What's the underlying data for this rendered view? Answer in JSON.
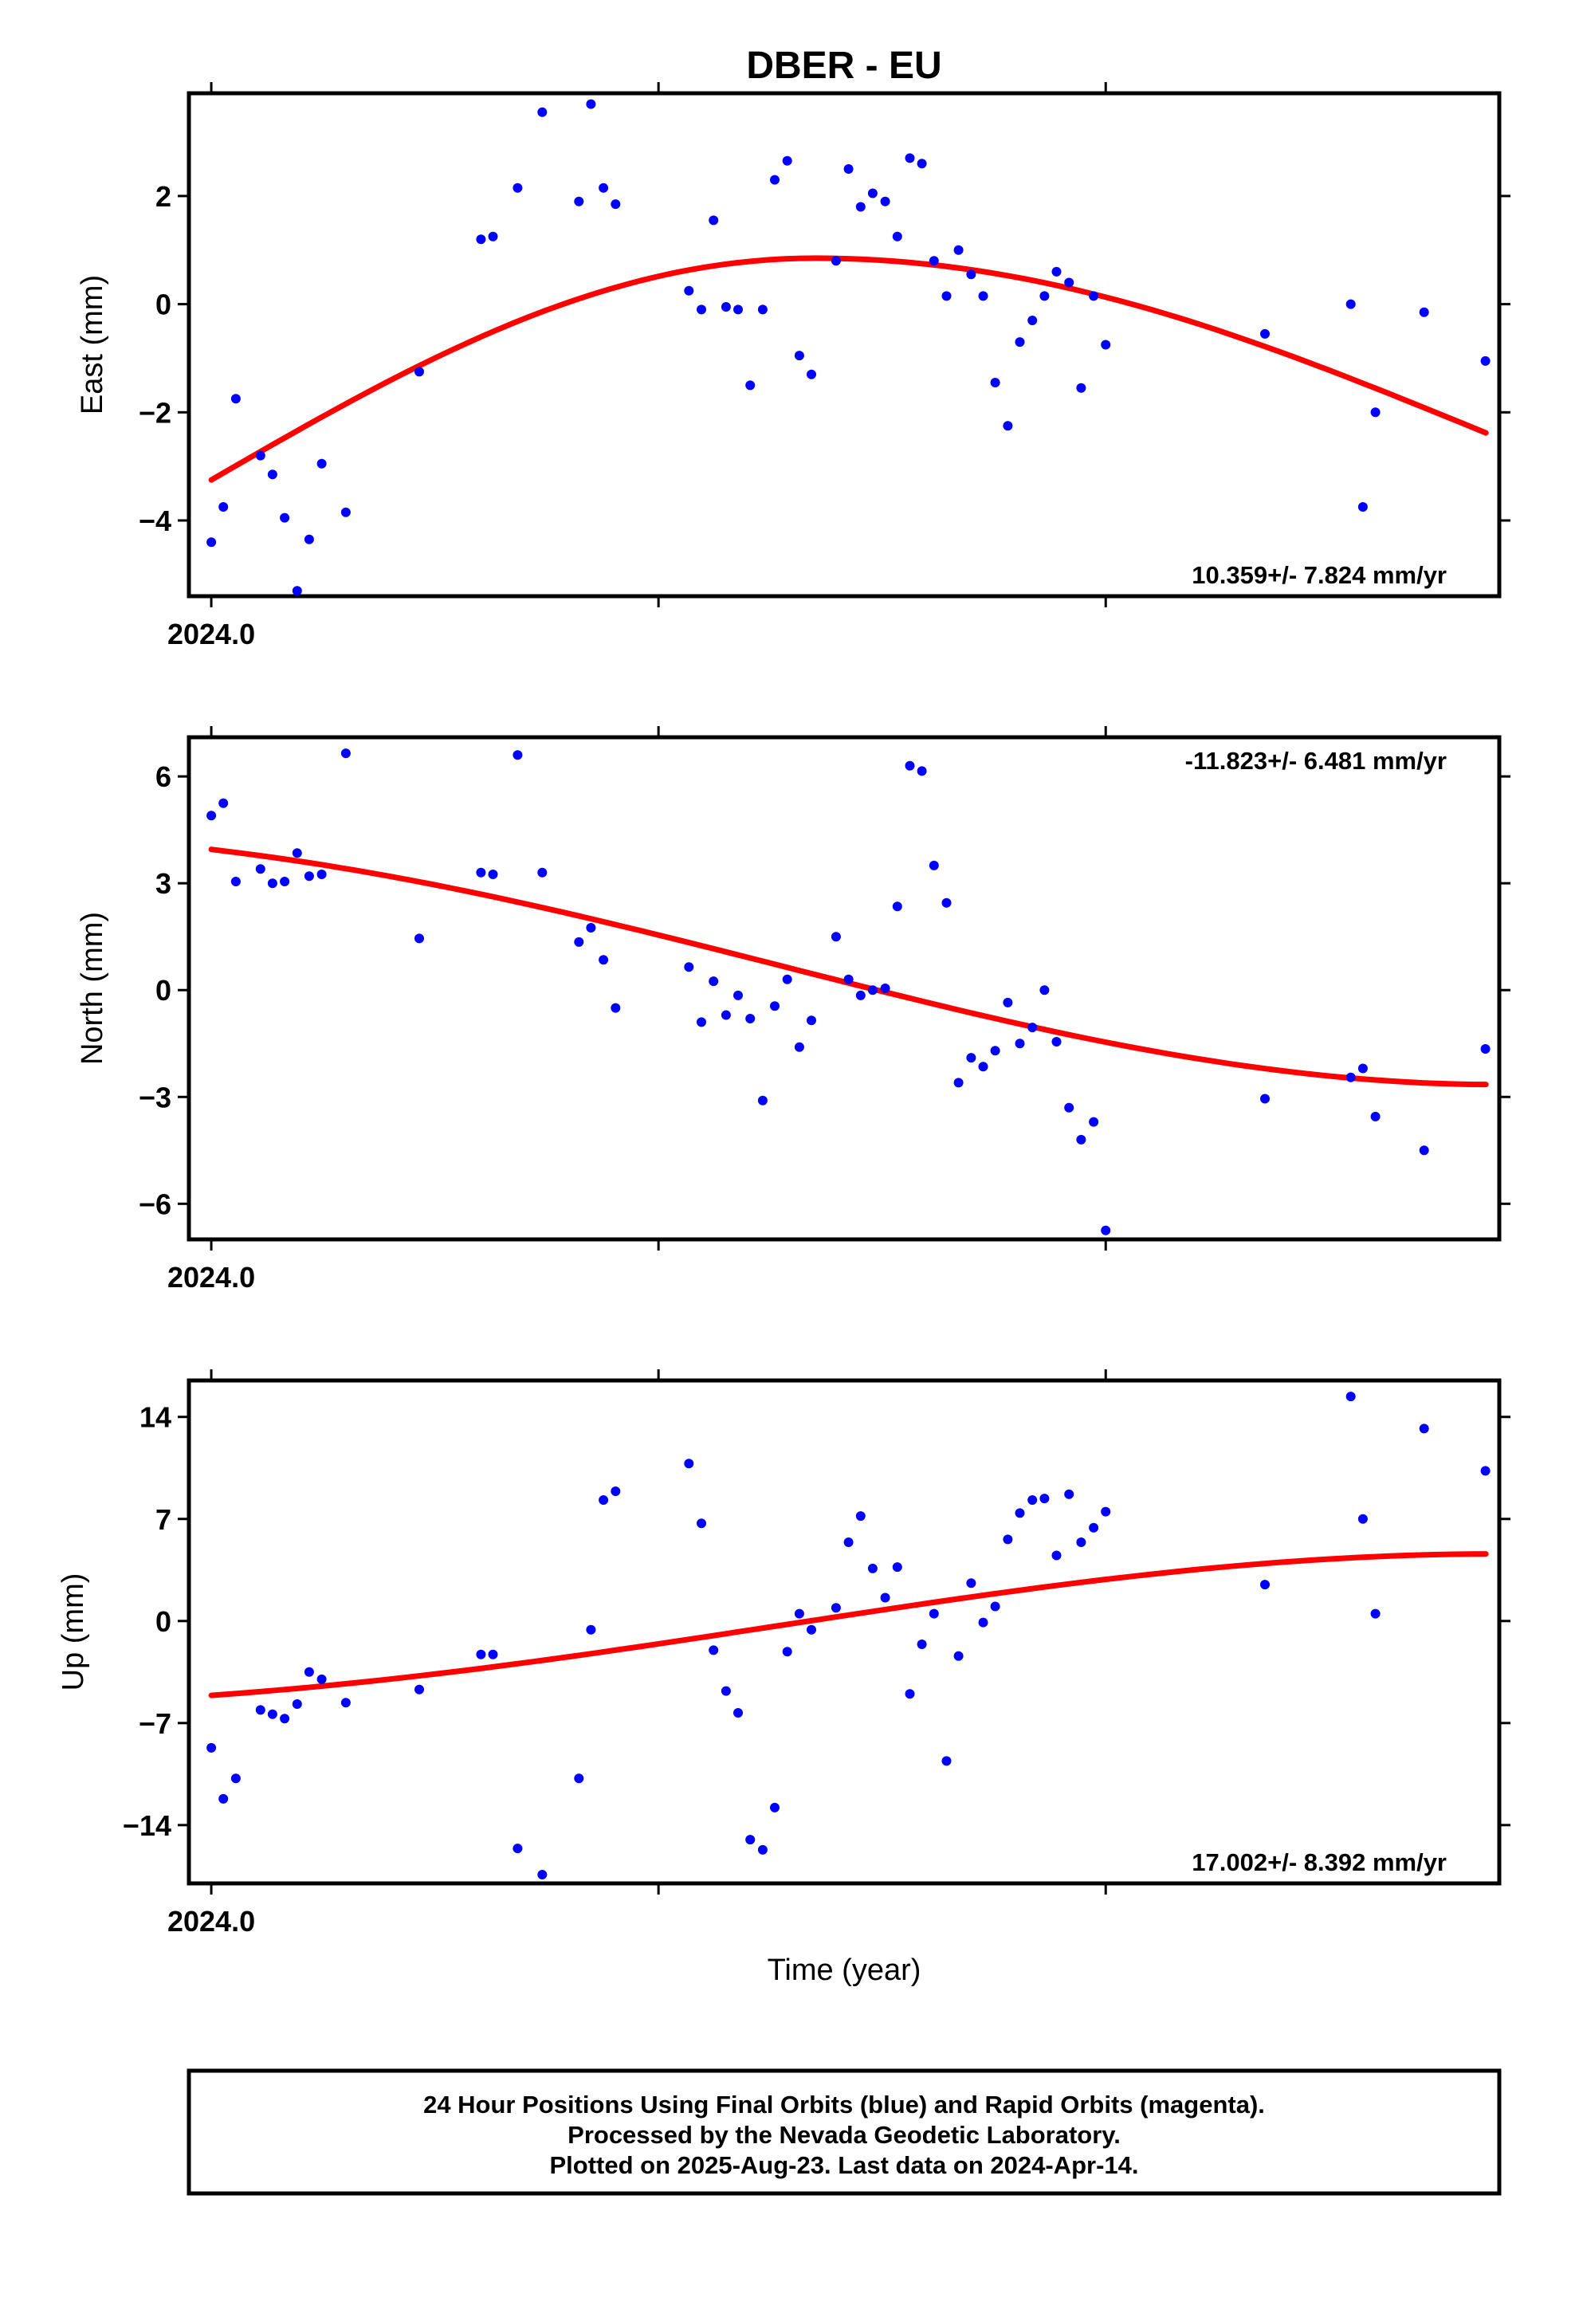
{
  "title": "DBER - EU",
  "xlabel": "Time (year)",
  "colors": {
    "final_orbits": "#0000ff",
    "rapid_orbits": "#ff00ff",
    "fit": "#ff0000",
    "frame": "#000000"
  },
  "footer": {
    "line1": "24 Hour Positions Using Final Orbits (blue) and Rapid Orbits (magenta).",
    "line2": "Processed by the Nevada Geodetic Laboratory.",
    "line3": "Plotted on 2025-Aug-23. Last data on 2024-Apr-14."
  },
  "chart_data": [
    {
      "type": "scatter",
      "ylabel": "East (mm)",
      "rate_label": "10.359+/- 7.824 mm/yr",
      "rate_position": "bottom-right",
      "xlim": [
        2023.995,
        2024.288
      ],
      "ylim": [
        -5.4,
        3.9
      ],
      "xticks": [
        2024.0,
        2024.1,
        2024.2
      ],
      "xtick_labels": [
        "2024.0",
        "",
        ""
      ],
      "yticks": [
        -4,
        -2,
        0,
        2
      ],
      "ytick_labels": [
        "−4",
        "−2",
        "0",
        "2"
      ],
      "points": [
        [
          2024.0,
          -4.4
        ],
        [
          2024.0027,
          -3.75
        ],
        [
          2024.0055,
          -1.75
        ],
        [
          2024.011,
          -2.8
        ],
        [
          2024.0137,
          -3.15
        ],
        [
          2024.0164,
          -3.95
        ],
        [
          2024.0192,
          -5.3
        ],
        [
          2024.0219,
          -4.35
        ],
        [
          2024.0247,
          -2.95
        ],
        [
          2024.0301,
          -3.85
        ],
        [
          2024.0465,
          -1.25
        ],
        [
          2024.0603,
          1.2
        ],
        [
          2024.063,
          1.25
        ],
        [
          2024.0685,
          2.15
        ],
        [
          2024.074,
          3.55
        ],
        [
          2024.0822,
          1.9
        ],
        [
          2024.0849,
          3.7
        ],
        [
          2024.0877,
          2.15
        ],
        [
          2024.0904,
          1.85
        ],
        [
          2024.1068,
          0.25
        ],
        [
          2024.1096,
          -0.1
        ],
        [
          2024.1123,
          1.55
        ],
        [
          2024.1151,
          -0.05
        ],
        [
          2024.1178,
          -0.1
        ],
        [
          2024.1205,
          -1.5
        ],
        [
          2024.1233,
          -0.1
        ],
        [
          2024.126,
          2.3
        ],
        [
          2024.1288,
          2.65
        ],
        [
          2024.1315,
          -0.95
        ],
        [
          2024.1342,
          -1.3
        ],
        [
          2024.1397,
          0.8
        ],
        [
          2024.1425,
          2.5
        ],
        [
          2024.1452,
          1.8
        ],
        [
          2024.1479,
          2.05
        ],
        [
          2024.1507,
          1.9
        ],
        [
          2024.1534,
          1.25
        ],
        [
          2024.1562,
          2.7
        ],
        [
          2024.1589,
          2.6
        ],
        [
          2024.1616,
          0.8
        ],
        [
          2024.1644,
          0.15
        ],
        [
          2024.1671,
          1.0
        ],
        [
          2024.1699,
          0.55
        ],
        [
          2024.1726,
          0.15
        ],
        [
          2024.1753,
          -1.45
        ],
        [
          2024.1781,
          -2.25
        ],
        [
          2024.1808,
          -0.7
        ],
        [
          2024.1836,
          -0.3
        ],
        [
          2024.1863,
          0.15
        ],
        [
          2024.189,
          0.6
        ],
        [
          2024.1918,
          0.4
        ],
        [
          2024.1945,
          -1.55
        ],
        [
          2024.1973,
          0.15
        ],
        [
          2024.2,
          -0.75
        ],
        [
          2024.2356,
          -0.55
        ],
        [
          2024.2548,
          0.0
        ],
        [
          2024.2575,
          -3.75
        ],
        [
          2024.2603,
          -2.0
        ],
        [
          2024.2712,
          -0.15
        ],
        [
          2024.2849,
          -1.05
        ]
      ],
      "fit": {
        "x": [
          2024.0,
          2024.285
        ],
        "y_start": -3.25,
        "y_end": -2.38,
        "peak_x": 2024.135,
        "peak_y": 0.85
      }
    },
    {
      "type": "scatter",
      "ylabel": "North (mm)",
      "rate_label": "-11.823+/- 6.481 mm/yr",
      "rate_position": "top-right",
      "xlim": [
        2023.995,
        2024.288
      ],
      "ylim": [
        -7.0,
        7.1
      ],
      "xticks": [
        2024.0,
        2024.1,
        2024.2
      ],
      "xtick_labels": [
        "2024.0",
        "",
        ""
      ],
      "yticks": [
        -6,
        -3,
        0,
        3,
        6
      ],
      "ytick_labels": [
        "−6",
        "−3",
        "0",
        "3",
        "6"
      ],
      "points": [
        [
          2024.0,
          4.9
        ],
        [
          2024.0027,
          5.25
        ],
        [
          2024.0055,
          3.05
        ],
        [
          2024.011,
          3.4
        ],
        [
          2024.0137,
          3.0
        ],
        [
          2024.0164,
          3.05
        ],
        [
          2024.0192,
          3.85
        ],
        [
          2024.0219,
          3.2
        ],
        [
          2024.0247,
          3.25
        ],
        [
          2024.0301,
          6.65
        ],
        [
          2024.0465,
          1.45
        ],
        [
          2024.0603,
          3.3
        ],
        [
          2024.063,
          3.25
        ],
        [
          2024.0685,
          6.6
        ],
        [
          2024.074,
          3.3
        ],
        [
          2024.0822,
          1.35
        ],
        [
          2024.0849,
          1.75
        ],
        [
          2024.0877,
          0.85
        ],
        [
          2024.0904,
          -0.5
        ],
        [
          2024.1068,
          0.65
        ],
        [
          2024.1096,
          -0.9
        ],
        [
          2024.1123,
          0.25
        ],
        [
          2024.1151,
          -0.7
        ],
        [
          2024.1178,
          -0.15
        ],
        [
          2024.1205,
          -0.8
        ],
        [
          2024.1233,
          -3.1
        ],
        [
          2024.126,
          -0.45
        ],
        [
          2024.1288,
          0.3
        ],
        [
          2024.1315,
          -1.6
        ],
        [
          2024.1342,
          -0.85
        ],
        [
          2024.1397,
          1.5
        ],
        [
          2024.1425,
          0.3
        ],
        [
          2024.1452,
          -0.15
        ],
        [
          2024.1479,
          0.0
        ],
        [
          2024.1507,
          0.05
        ],
        [
          2024.1534,
          2.35
        ],
        [
          2024.1562,
          6.3
        ],
        [
          2024.1589,
          6.15
        ],
        [
          2024.1616,
          3.5
        ],
        [
          2024.1644,
          2.45
        ],
        [
          2024.1671,
          -2.6
        ],
        [
          2024.1699,
          -1.9
        ],
        [
          2024.1726,
          -2.15
        ],
        [
          2024.1753,
          -1.7
        ],
        [
          2024.1781,
          -0.35
        ],
        [
          2024.1808,
          -1.5
        ],
        [
          2024.1836,
          -1.05
        ],
        [
          2024.1863,
          0.0
        ],
        [
          2024.189,
          -1.45
        ],
        [
          2024.1918,
          -3.3
        ],
        [
          2024.1945,
          -4.2
        ],
        [
          2024.1973,
          -3.7
        ],
        [
          2024.2,
          -6.75
        ],
        [
          2024.2356,
          -3.05
        ],
        [
          2024.2548,
          -2.45
        ],
        [
          2024.2575,
          -2.2
        ],
        [
          2024.2603,
          -3.55
        ],
        [
          2024.2712,
          -4.5
        ],
        [
          2024.2849,
          -1.65
        ]
      ],
      "fit": {
        "x": [
          2024.0,
          2024.285
        ],
        "y_start": 3.95,
        "y_end": -2.65
      }
    },
    {
      "type": "scatter",
      "ylabel": "Up (mm)",
      "rate_label": "17.002+/- 8.392 mm/yr",
      "rate_position": "bottom-right",
      "xlim": [
        2023.995,
        2024.288
      ],
      "ylim": [
        -18.0,
        16.5
      ],
      "xticks": [
        2024.0,
        2024.1,
        2024.2
      ],
      "xtick_labels": [
        "2024.0",
        "",
        ""
      ],
      "yticks": [
        -14,
        -7,
        0,
        7,
        14
      ],
      "ytick_labels": [
        "−14",
        "−7",
        "0",
        "7",
        "14"
      ],
      "points": [
        [
          2024.0,
          -8.7
        ],
        [
          2024.0027,
          -12.2
        ],
        [
          2024.0055,
          -10.8
        ],
        [
          2024.011,
          -6.1
        ],
        [
          2024.0137,
          -6.4
        ],
        [
          2024.0164,
          -6.7
        ],
        [
          2024.0192,
          -5.7
        ],
        [
          2024.0219,
          -3.5
        ],
        [
          2024.0247,
          -4.0
        ],
        [
          2024.0301,
          -5.6
        ],
        [
          2024.0465,
          -4.7
        ],
        [
          2024.0603,
          -2.3
        ],
        [
          2024.063,
          -2.3
        ],
        [
          2024.0685,
          -15.6
        ],
        [
          2024.074,
          -17.4
        ],
        [
          2024.0822,
          -10.8
        ],
        [
          2024.0849,
          -0.6
        ],
        [
          2024.0877,
          8.3
        ],
        [
          2024.0904,
          8.9
        ],
        [
          2024.1068,
          10.8
        ],
        [
          2024.1096,
          6.7
        ],
        [
          2024.1123,
          -2.0
        ],
        [
          2024.1151,
          -4.8
        ],
        [
          2024.1178,
          -6.3
        ],
        [
          2024.1205,
          -15.0
        ],
        [
          2024.1233,
          -15.7
        ],
        [
          2024.126,
          -12.8
        ],
        [
          2024.1288,
          -2.1
        ],
        [
          2024.1315,
          0.5
        ],
        [
          2024.1342,
          -0.6
        ],
        [
          2024.1397,
          0.9
        ],
        [
          2024.1425,
          5.4
        ],
        [
          2024.1452,
          7.2
        ],
        [
          2024.1479,
          3.6
        ],
        [
          2024.1507,
          1.6
        ],
        [
          2024.1534,
          3.7
        ],
        [
          2024.1562,
          -5.0
        ],
        [
          2024.1589,
          -1.6
        ],
        [
          2024.1616,
          0.5
        ],
        [
          2024.1644,
          -9.6
        ],
        [
          2024.1671,
          -2.4
        ],
        [
          2024.1699,
          2.6
        ],
        [
          2024.1726,
          -0.1
        ],
        [
          2024.1753,
          1.0
        ],
        [
          2024.1781,
          5.6
        ],
        [
          2024.1808,
          7.4
        ],
        [
          2024.1836,
          8.3
        ],
        [
          2024.1863,
          8.4
        ],
        [
          2024.189,
          4.5
        ],
        [
          2024.1918,
          8.7
        ],
        [
          2024.1945,
          5.4
        ],
        [
          2024.1973,
          6.4
        ],
        [
          2024.2,
          7.5
        ],
        [
          2024.2356,
          2.5
        ],
        [
          2024.2548,
          15.4
        ],
        [
          2024.2575,
          7.0
        ],
        [
          2024.2603,
          0.5
        ],
        [
          2024.2712,
          13.2
        ],
        [
          2024.2849,
          10.3
        ]
      ],
      "fit": {
        "x": [
          2024.0,
          2024.285
        ],
        "y_start": -5.1,
        "y_end": 4.6
      }
    }
  ]
}
